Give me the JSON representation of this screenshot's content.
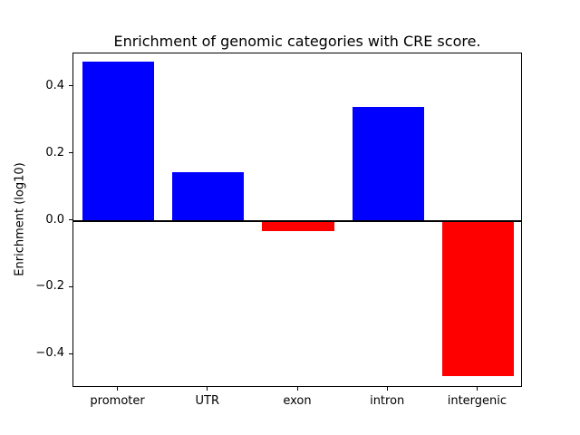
{
  "chart_data": {
    "type": "bar",
    "title": "Enrichment of genomic categories with CRE score.",
    "xlabel": "",
    "ylabel": "Enrichment (log10)",
    "categories": [
      "promoter",
      "UTR",
      "exon",
      "intron",
      "intergenic"
    ],
    "values": [
      0.475,
      0.145,
      -0.03,
      0.34,
      -0.465
    ],
    "ylim": [
      -0.5,
      0.5
    ],
    "yticks": [
      -0.4,
      -0.2,
      0.0,
      0.2,
      0.4
    ],
    "positive_color": "#0000ff",
    "negative_color": "#ff0000",
    "zero_line_color": "#000000",
    "grid": "off",
    "legend": "none"
  }
}
